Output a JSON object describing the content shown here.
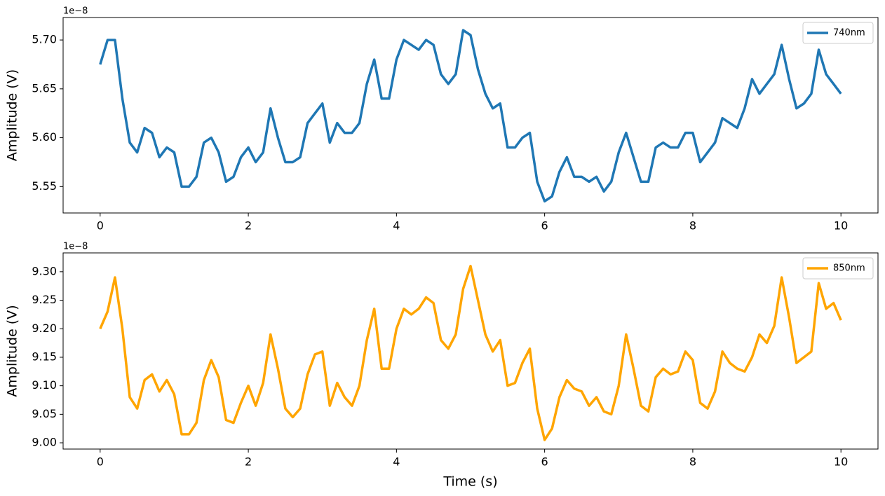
{
  "chart_data": [
    {
      "type": "line",
      "offset_text": "1e−8",
      "ylabel": "Amplitude (V)",
      "x": [
        0,
        0.1,
        0.2,
        0.3,
        0.4,
        0.5,
        0.6,
        0.7,
        0.8,
        0.9,
        1,
        1.1,
        1.2,
        1.3,
        1.4,
        1.5,
        1.6,
        1.7,
        1.8,
        1.9,
        2,
        2.1,
        2.2,
        2.3,
        2.4,
        2.5,
        2.6,
        2.7,
        2.8,
        2.9,
        3,
        3.1,
        3.2,
        3.3,
        3.4,
        3.5,
        3.6,
        3.7,
        3.8,
        3.9,
        4,
        4.1,
        4.2,
        4.3,
        4.4,
        4.5,
        4.6,
        4.7,
        4.8,
        4.9,
        5,
        5.1,
        5.2,
        5.3,
        5.4,
        5.5,
        5.6,
        5.7,
        5.8,
        5.9,
        6,
        6.1,
        6.2,
        6.3,
        6.4,
        6.5,
        6.6,
        6.7,
        6.8,
        6.9,
        7,
        7.1,
        7.2,
        7.3,
        7.4,
        7.5,
        7.6,
        7.7,
        7.8,
        7.9,
        8,
        8.1,
        8.2,
        8.3,
        8.4,
        8.5,
        8.6,
        8.7,
        8.8,
        8.9,
        9,
        9.1,
        9.2,
        9.3,
        9.4,
        9.5,
        9.6,
        9.7,
        9.8,
        9.9,
        10
      ],
      "series": [
        {
          "name": "740nm",
          "color": "#1f77b4",
          "values": [
            5.675,
            5.7,
            5.7,
            5.64,
            5.595,
            5.585,
            5.61,
            5.605,
            5.58,
            5.59,
            5.585,
            5.55,
            5.55,
            5.56,
            5.595,
            5.6,
            5.585,
            5.555,
            5.56,
            5.58,
            5.59,
            5.575,
            5.585,
            5.63,
            5.6,
            5.575,
            5.575,
            5.58,
            5.615,
            5.625,
            5.635,
            5.595,
            5.615,
            5.605,
            5.605,
            5.615,
            5.655,
            5.68,
            5.64,
            5.64,
            5.68,
            5.7,
            5.695,
            5.69,
            5.7,
            5.695,
            5.665,
            5.655,
            5.665,
            5.71,
            5.705,
            5.67,
            5.645,
            5.63,
            5.635,
            5.59,
            5.59,
            5.6,
            5.605,
            5.555,
            5.535,
            5.54,
            5.565,
            5.58,
            5.56,
            5.56,
            5.555,
            5.56,
            5.545,
            5.555,
            5.585,
            5.605,
            5.58,
            5.555,
            5.555,
            5.59,
            5.595,
            5.59,
            5.59,
            5.605,
            5.605,
            5.575,
            5.585,
            5.595,
            5.62,
            5.615,
            5.61,
            5.63,
            5.66,
            5.645,
            5.655,
            5.665,
            5.695,
            5.66,
            5.63,
            5.635,
            5.645,
            5.69,
            5.665,
            5.655,
            5.645
          ]
        }
      ],
      "xlim": [
        -0.5,
        10.5
      ],
      "xticks": [
        0,
        2,
        4,
        6,
        8,
        10
      ],
      "ylim": [
        5.523,
        5.723
      ],
      "yticks": [
        {
          "value": 5.55,
          "label": "5.55"
        },
        {
          "value": 5.6,
          "label": "5.60"
        },
        {
          "value": 5.65,
          "label": "5.65"
        },
        {
          "value": 5.7,
          "label": "5.70"
        }
      ],
      "legend": "upper right"
    },
    {
      "type": "line",
      "offset_text": "1e−8",
      "ylabel": "Amplitude (V)",
      "xlabel": "Time (s)",
      "x": [
        0,
        0.1,
        0.2,
        0.3,
        0.4,
        0.5,
        0.6,
        0.7,
        0.8,
        0.9,
        1,
        1.1,
        1.2,
        1.3,
        1.4,
        1.5,
        1.6,
        1.7,
        1.8,
        1.9,
        2,
        2.1,
        2.2,
        2.3,
        2.4,
        2.5,
        2.6,
        2.7,
        2.8,
        2.9,
        3,
        3.1,
        3.2,
        3.3,
        3.4,
        3.5,
        3.6,
        3.7,
        3.8,
        3.9,
        4,
        4.1,
        4.2,
        4.3,
        4.4,
        4.5,
        4.6,
        4.7,
        4.8,
        4.9,
        5,
        5.1,
        5.2,
        5.3,
        5.4,
        5.5,
        5.6,
        5.7,
        5.8,
        5.9,
        6,
        6.1,
        6.2,
        6.3,
        6.4,
        6.5,
        6.6,
        6.7,
        6.8,
        6.9,
        7,
        7.1,
        7.2,
        7.3,
        7.4,
        7.5,
        7.6,
        7.7,
        7.8,
        7.9,
        8,
        8.1,
        8.2,
        8.3,
        8.4,
        8.5,
        8.6,
        8.7,
        8.8,
        8.9,
        9,
        9.1,
        9.2,
        9.3,
        9.4,
        9.5,
        9.6,
        9.7,
        9.8,
        9.9,
        10
      ],
      "series": [
        {
          "name": "850nm",
          "color": "#ffa500",
          "values": [
            9.2,
            9.23,
            9.29,
            9.2,
            9.08,
            9.06,
            9.11,
            9.12,
            9.09,
            9.11,
            9.085,
            9.015,
            9.015,
            9.035,
            9.11,
            9.145,
            9.115,
            9.04,
            9.035,
            9.07,
            9.1,
            9.065,
            9.105,
            9.19,
            9.13,
            9.06,
            9.045,
            9.06,
            9.12,
            9.155,
            9.16,
            9.065,
            9.105,
            9.08,
            9.065,
            9.1,
            9.18,
            9.235,
            9.13,
            9.13,
            9.2,
            9.235,
            9.225,
            9.235,
            9.255,
            9.245,
            9.18,
            9.165,
            9.19,
            9.27,
            9.31,
            9.25,
            9.19,
            9.16,
            9.18,
            9.1,
            9.105,
            9.14,
            9.165,
            9.06,
            9.005,
            9.025,
            9.08,
            9.11,
            9.095,
            9.09,
            9.065,
            9.08,
            9.055,
            9.05,
            9.1,
            9.19,
            9.13,
            9.065,
            9.055,
            9.115,
            9.13,
            9.12,
            9.125,
            9.16,
            9.145,
            9.07,
            9.06,
            9.09,
            9.16,
            9.14,
            9.13,
            9.125,
            9.15,
            9.19,
            9.175,
            9.205,
            9.29,
            9.22,
            9.14,
            9.15,
            9.16,
            9.28,
            9.235,
            9.245,
            9.215
          ]
        }
      ],
      "xlim": [
        -0.5,
        10.5
      ],
      "xticks": [
        0,
        2,
        4,
        6,
        8,
        10
      ],
      "ylim": [
        8.989,
        9.333
      ],
      "yticks": [
        {
          "value": 9.0,
          "label": "9.00"
        },
        {
          "value": 9.05,
          "label": "9.05"
        },
        {
          "value": 9.1,
          "label": "9.10"
        },
        {
          "value": 9.15,
          "label": "9.15"
        },
        {
          "value": 9.2,
          "label": "9.20"
        },
        {
          "value": 9.25,
          "label": "9.25"
        },
        {
          "value": 9.3,
          "label": "9.30"
        }
      ],
      "legend": "upper right"
    }
  ]
}
